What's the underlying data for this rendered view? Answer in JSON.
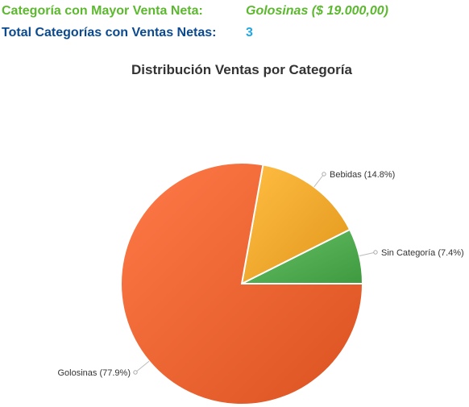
{
  "summary": {
    "top_category_label": "Categoría con Mayor Venta Neta:",
    "top_category_value": "Golosinas ($ 19.000,00)",
    "total_categories_label": "Total Categorías con Ventas Netas:",
    "total_categories_value": "3"
  },
  "colors": {
    "summary_green": "#5cb82f",
    "summary_blue": "#0b4a8f",
    "summary_count": "#1ea7e4"
  },
  "chart_data": {
    "type": "pie",
    "title": "Distribución Ventas por Categoría",
    "slices": [
      {
        "name": "Sin Categoría",
        "percent": 7.4,
        "label": "Sin Categoría (7.4%)",
        "color": "#4ea84e"
      },
      {
        "name": "Bebidas",
        "percent": 14.8,
        "label": "Bebidas (14.8%)",
        "color": "#f0a52a"
      },
      {
        "name": "Golosinas",
        "percent": 77.9,
        "label": "Golosinas (77.9%)",
        "color": "#e9612f"
      }
    ],
    "legend": "none"
  }
}
